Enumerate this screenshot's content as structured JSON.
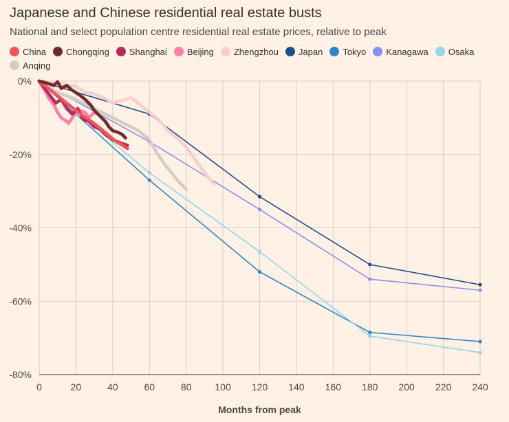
{
  "title": "Japanese and Chinese residential real estate busts",
  "subtitle": "National and select population centre residential real estate prices, relative to peak",
  "chart_data": {
    "type": "line",
    "title": "Japanese and Chinese residential real estate busts",
    "subtitle": "National and select population centre residential real estate prices, relative to peak",
    "xlabel": "Months from peak",
    "ylabel": "",
    "xlim": [
      0,
      240
    ],
    "ylim": [
      -80,
      0
    ],
    "xticks": [
      0,
      20,
      40,
      60,
      80,
      100,
      120,
      140,
      160,
      180,
      200,
      220,
      240
    ],
    "yticks": [
      0,
      -20,
      -40,
      -60,
      -80
    ],
    "ytick_labels": [
      "0%",
      "-20%",
      "-40%",
      "-60%",
      "-80%"
    ],
    "grid": true,
    "legend_position": "top",
    "series": [
      {
        "name": "China",
        "color": "#F2545B",
        "style": "dots",
        "x": [
          0,
          3,
          6,
          9,
          12,
          15,
          18,
          21,
          24,
          27,
          30,
          33,
          36,
          39,
          42,
          45,
          48
        ],
        "y": [
          0,
          -1.2,
          -2.4,
          -3.6,
          -4.8,
          -6,
          -7.2,
          -8.4,
          -9.5,
          -10.5,
          -11.6,
          -12.8,
          -14,
          -15.3,
          -16.5,
          -17.4,
          -18.4
        ]
      },
      {
        "name": "Chongqing",
        "color": "#6E2B2B",
        "style": "dots",
        "x": [
          0,
          4,
          8,
          10,
          12,
          15,
          18,
          22,
          25,
          28,
          30,
          33,
          36,
          38,
          40,
          43,
          45,
          47
        ],
        "y": [
          0,
          -0.5,
          -1.2,
          -0.2,
          -2,
          -1.2,
          -2.5,
          -3.8,
          -5,
          -6.5,
          -8,
          -9.5,
          -11,
          -12.5,
          -13.5,
          -14,
          -14.5,
          -15.5
        ]
      },
      {
        "name": "Shanghai",
        "color": "#B02E5C",
        "style": "dots",
        "x": [
          0,
          3,
          6,
          9,
          12,
          15,
          18,
          21,
          24,
          27,
          30,
          33,
          36,
          40,
          44,
          48
        ],
        "y": [
          0,
          -2,
          -4,
          -6,
          -5,
          -7.5,
          -9,
          -7.5,
          -10.5,
          -11,
          -12.5,
          -13,
          -14.5,
          -16,
          -16.8,
          -17.5
        ]
      },
      {
        "name": "Beijing",
        "color": "#FF7FAA",
        "style": "dots",
        "x": [
          0,
          3,
          5,
          8,
          10,
          12,
          15,
          16,
          18,
          20,
          22,
          25,
          27,
          30,
          32
        ],
        "y": [
          0,
          -2.5,
          -4.5,
          -6.5,
          -8.5,
          -10,
          -11,
          -11.5,
          -10,
          -8.5,
          -8,
          -8.5,
          -10,
          -8.5,
          -9
        ]
      },
      {
        "name": "Zhengzhou",
        "color": "#F9CECF",
        "style": "dots",
        "x": [
          0,
          8,
          15,
          20,
          25,
          30,
          35,
          40,
          43,
          47,
          50,
          55,
          60,
          65,
          70,
          75,
          80,
          85,
          90,
          95
        ],
        "y": [
          0,
          -0.5,
          -1,
          -1.5,
          -3,
          -3.5,
          -4.5,
          -6,
          -5.5,
          -5,
          -4.5,
          -6.5,
          -8.5,
          -10.5,
          -13.5,
          -15.5,
          -18,
          -21.5,
          -25,
          -28
        ]
      },
      {
        "name": "Japan",
        "color": "#1E4E8C",
        "style": "line",
        "x": [
          0,
          60,
          120,
          180,
          240
        ],
        "y": [
          0,
          -9,
          -31.5,
          -50,
          -55.5
        ]
      },
      {
        "name": "Tokyo",
        "color": "#2B88C7",
        "style": "line",
        "x": [
          0,
          60,
          120,
          180,
          240
        ],
        "y": [
          0,
          -27,
          -52,
          -68.5,
          -71
        ]
      },
      {
        "name": "Kanagawa",
        "color": "#8C8DF0",
        "style": "line",
        "x": [
          0,
          60,
          120,
          180,
          240
        ],
        "y": [
          0,
          -16.5,
          -35,
          -54,
          -57
        ]
      },
      {
        "name": "Osaka",
        "color": "#94D5E8",
        "style": "line",
        "x": [
          0,
          60,
          120,
          180,
          240
        ],
        "y": [
          0,
          -25,
          -46.5,
          -69.5,
          -74
        ]
      },
      {
        "name": "Anqing",
        "color": "#D6CDC1",
        "style": "dots",
        "x": [
          0,
          6,
          12,
          18,
          24,
          30,
          36,
          42,
          48,
          54,
          60,
          64,
          68,
          72,
          76,
          80
        ],
        "y": [
          0,
          -2,
          -3.5,
          -4.5,
          -6,
          -7.5,
          -9,
          -10.5,
          -12,
          -13.5,
          -16,
          -19.5,
          -22.5,
          -25,
          -27.5,
          -29.5
        ]
      }
    ]
  }
}
